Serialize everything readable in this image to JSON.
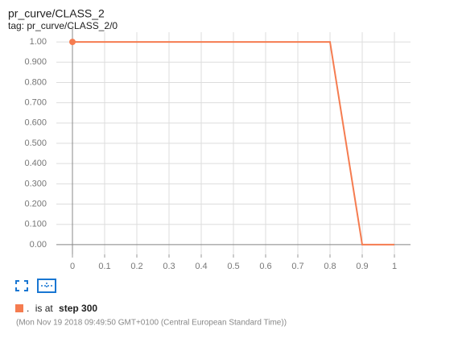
{
  "chart_data": {
    "type": "line",
    "title": "pr_curve/CLASS_2",
    "subtitle": "tag: pr_curve/CLASS_2/0",
    "x": [
      0,
      0.8,
      0.9,
      1
    ],
    "series": [
      {
        "name": ".",
        "color": "#f57c50",
        "values": [
          1,
          1,
          0,
          0
        ]
      }
    ],
    "xlim": [
      -0.05,
      1.05
    ],
    "ylim": [
      -0.048,
      1.048
    ],
    "xticks": [
      0,
      0.1,
      0.2,
      0.3,
      0.4,
      0.5,
      0.6,
      0.7,
      0.8,
      0.9,
      1
    ],
    "yticks": [
      {
        "value": 0,
        "label": "0.00"
      },
      {
        "value": 0.1,
        "label": "0.100"
      },
      {
        "value": 0.2,
        "label": "0.200"
      },
      {
        "value": 0.3,
        "label": "0.300"
      },
      {
        "value": 0.4,
        "label": "0.400"
      },
      {
        "value": 0.5,
        "label": "0.500"
      },
      {
        "value": 0.6,
        "label": "0.600"
      },
      {
        "value": 0.7,
        "label": "0.700"
      },
      {
        "value": 0.8,
        "label": "0.800"
      },
      {
        "value": 0.9,
        "label": "0.900"
      },
      {
        "value": 1,
        "label": "1.00"
      }
    ],
    "grid": true
  },
  "run_info": {
    "status": "is at",
    "step": "step 300",
    "timestamp": "(Mon Nov 19 2018 09:49:50 GMT+0100 (Central European Standard Time))"
  }
}
